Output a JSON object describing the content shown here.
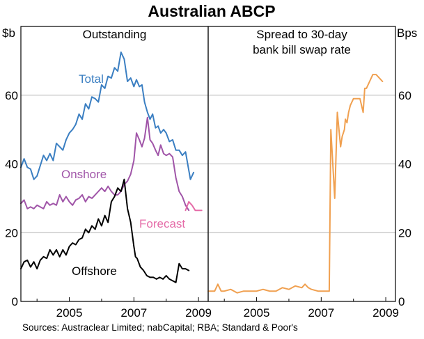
{
  "title": "Australian ABCP",
  "source_note": "Sources: Austraclear Limited; nabCapital; RBA; Standard & Poor's",
  "left_unit": "$b",
  "right_unit": "Bps",
  "chart_data": [
    {
      "type": "line",
      "title": "Outstanding",
      "ylabel": "$b",
      "xlim": [
        2003.5,
        2009.3
      ],
      "ylim": [
        0,
        80
      ],
      "yticks": [
        0,
        20,
        40,
        60
      ],
      "xticks": [
        2005,
        2007,
        2009
      ],
      "grid": true,
      "series": [
        {
          "name": "Total",
          "color": "#3b7fc2",
          "x": [
            2003.5,
            2003.6,
            2003.7,
            2003.8,
            2003.9,
            2004.0,
            2004.1,
            2004.2,
            2004.3,
            2004.4,
            2004.5,
            2004.6,
            2004.7,
            2004.8,
            2004.9,
            2005.0,
            2005.1,
            2005.2,
            2005.3,
            2005.4,
            2005.5,
            2005.6,
            2005.7,
            2005.8,
            2005.9,
            2006.0,
            2006.1,
            2006.2,
            2006.3,
            2006.4,
            2006.5,
            2006.6,
            2006.7,
            2006.8,
            2006.9,
            2007.0,
            2007.08,
            2007.17,
            2007.25,
            2007.33,
            2007.42,
            2007.5,
            2007.58,
            2007.67,
            2007.75,
            2007.83,
            2007.92,
            2008.0,
            2008.1,
            2008.2,
            2008.3,
            2008.4,
            2008.5,
            2008.6,
            2008.75,
            2008.85
          ],
          "y": [
            39,
            41.5,
            39,
            38.5,
            35.5,
            36.5,
            39.5,
            42.5,
            41,
            43,
            41,
            46,
            45,
            44,
            47,
            49,
            50,
            51.5,
            54.5,
            53,
            57.5,
            56,
            59.5,
            59,
            58,
            63,
            62,
            65.5,
            65,
            68,
            67,
            72.5,
            70.5,
            64,
            65,
            62.5,
            64.5,
            62.5,
            63,
            58,
            55,
            53,
            54.5,
            50.5,
            51,
            49,
            50,
            49,
            46.5,
            47,
            44,
            44,
            42.5,
            43.5,
            35.5,
            37.5
          ]
        },
        {
          "name": "Onshore",
          "color": "#a055a8",
          "x": [
            2003.5,
            2003.6,
            2003.7,
            2003.8,
            2003.9,
            2004.0,
            2004.1,
            2004.2,
            2004.3,
            2004.4,
            2004.5,
            2004.6,
            2004.7,
            2004.8,
            2004.9,
            2005.0,
            2005.1,
            2005.2,
            2005.3,
            2005.4,
            2005.5,
            2005.6,
            2005.7,
            2005.8,
            2005.9,
            2006.0,
            2006.1,
            2006.2,
            2006.3,
            2006.4,
            2006.5,
            2006.6,
            2006.7,
            2006.8,
            2006.9,
            2007.0,
            2007.08,
            2007.17,
            2007.25,
            2007.33,
            2007.42,
            2007.5,
            2007.58,
            2007.67,
            2007.75,
            2007.83,
            2007.92,
            2008.0,
            2008.1,
            2008.2,
            2008.3,
            2008.4,
            2008.5,
            2008.6,
            2008.7
          ],
          "y": [
            28.5,
            29.5,
            27,
            27.5,
            27,
            28,
            27.5,
            27,
            29,
            28,
            28.5,
            28,
            31,
            29,
            30.5,
            29,
            28,
            29.5,
            30,
            31,
            29,
            30.5,
            30,
            31,
            32,
            33,
            32,
            33.5,
            32,
            31,
            31,
            32,
            34,
            35,
            37,
            41,
            49,
            47,
            45,
            47.5,
            53.5,
            47,
            46,
            44,
            42.5,
            45.5,
            43,
            42.5,
            43,
            42,
            36,
            32,
            30.5,
            28,
            26.5
          ]
        },
        {
          "name": "Forecast",
          "color": "#e56ca8",
          "x": [
            2008.6,
            2008.7,
            2008.8,
            2008.9,
            2009.0,
            2009.1
          ],
          "y": [
            26.5,
            29,
            28,
            26.5,
            26.5,
            26.5
          ]
        },
        {
          "name": "Offshore",
          "color": "#000000",
          "x": [
            2003.5,
            2003.6,
            2003.7,
            2003.8,
            2003.9,
            2004.0,
            2004.1,
            2004.2,
            2004.3,
            2004.4,
            2004.5,
            2004.6,
            2004.7,
            2004.8,
            2004.9,
            2005.0,
            2005.1,
            2005.2,
            2005.3,
            2005.4,
            2005.5,
            2005.6,
            2005.7,
            2005.8,
            2005.9,
            2006.0,
            2006.1,
            2006.2,
            2006.3,
            2006.4,
            2006.5,
            2006.6,
            2006.7,
            2006.8,
            2006.9,
            2007.0,
            2007.05,
            2007.1,
            2007.2,
            2007.3,
            2007.4,
            2007.5,
            2007.6,
            2007.7,
            2007.8,
            2007.9,
            2008.0,
            2008.1,
            2008.2,
            2008.3,
            2008.4,
            2008.5,
            2008.6,
            2008.7
          ],
          "y": [
            9.5,
            11.5,
            12,
            10,
            11.5,
            9.5,
            12,
            13,
            12.5,
            15,
            13.5,
            15,
            13,
            15,
            13.5,
            16,
            17,
            16.5,
            18,
            18.5,
            21,
            20,
            22,
            21,
            24,
            22,
            25,
            23,
            29,
            30.5,
            33,
            32,
            35.5,
            27,
            23,
            16,
            13,
            12.5,
            10,
            9,
            7.5,
            7,
            7,
            6.5,
            7,
            6.5,
            7.5,
            6.5,
            6,
            5.5,
            11,
            9.5,
            9.5,
            9
          ]
        }
      ],
      "annotations": [
        "Total",
        "Onshore",
        "Forecast",
        "Offshore"
      ]
    },
    {
      "type": "line",
      "title": "Spread to 30-day\nbank bill swap rate",
      "ylabel": "Bps",
      "xlim": [
        2003.5,
        2009.3
      ],
      "ylim": [
        0,
        80
      ],
      "yticks": [
        0,
        20,
        40,
        60
      ],
      "xticks": [
        2005,
        2007,
        2009
      ],
      "grid": true,
      "series": [
        {
          "name": "Spread",
          "color": "#f0a050",
          "x": [
            2003.5,
            2003.7,
            2003.8,
            2003.9,
            2004.0,
            2004.2,
            2004.4,
            2004.6,
            2004.8,
            2005.0,
            2005.2,
            2005.4,
            2005.6,
            2005.8,
            2006.0,
            2006.2,
            2006.4,
            2006.5,
            2006.6,
            2006.7,
            2006.9,
            2007.1,
            2007.25,
            2007.3,
            2007.42,
            2007.5,
            2007.6,
            2007.65,
            2007.72,
            2007.75,
            2007.8,
            2007.85,
            2007.9,
            2008.0,
            2008.1,
            2008.2,
            2008.3,
            2008.35,
            2008.4,
            2008.5,
            2008.6,
            2008.7,
            2008.8,
            2008.9
          ],
          "y": [
            3,
            3,
            5,
            3,
            3,
            3.5,
            2.5,
            3,
            3,
            3,
            3.5,
            3,
            3,
            4,
            3.5,
            4.5,
            4,
            5,
            4,
            3.5,
            3,
            3,
            3,
            50,
            30,
            55,
            45,
            48,
            50,
            53,
            52,
            55,
            57,
            59,
            59,
            59,
            55,
            62,
            62,
            64,
            66,
            66,
            65,
            64
          ]
        }
      ]
    }
  ]
}
